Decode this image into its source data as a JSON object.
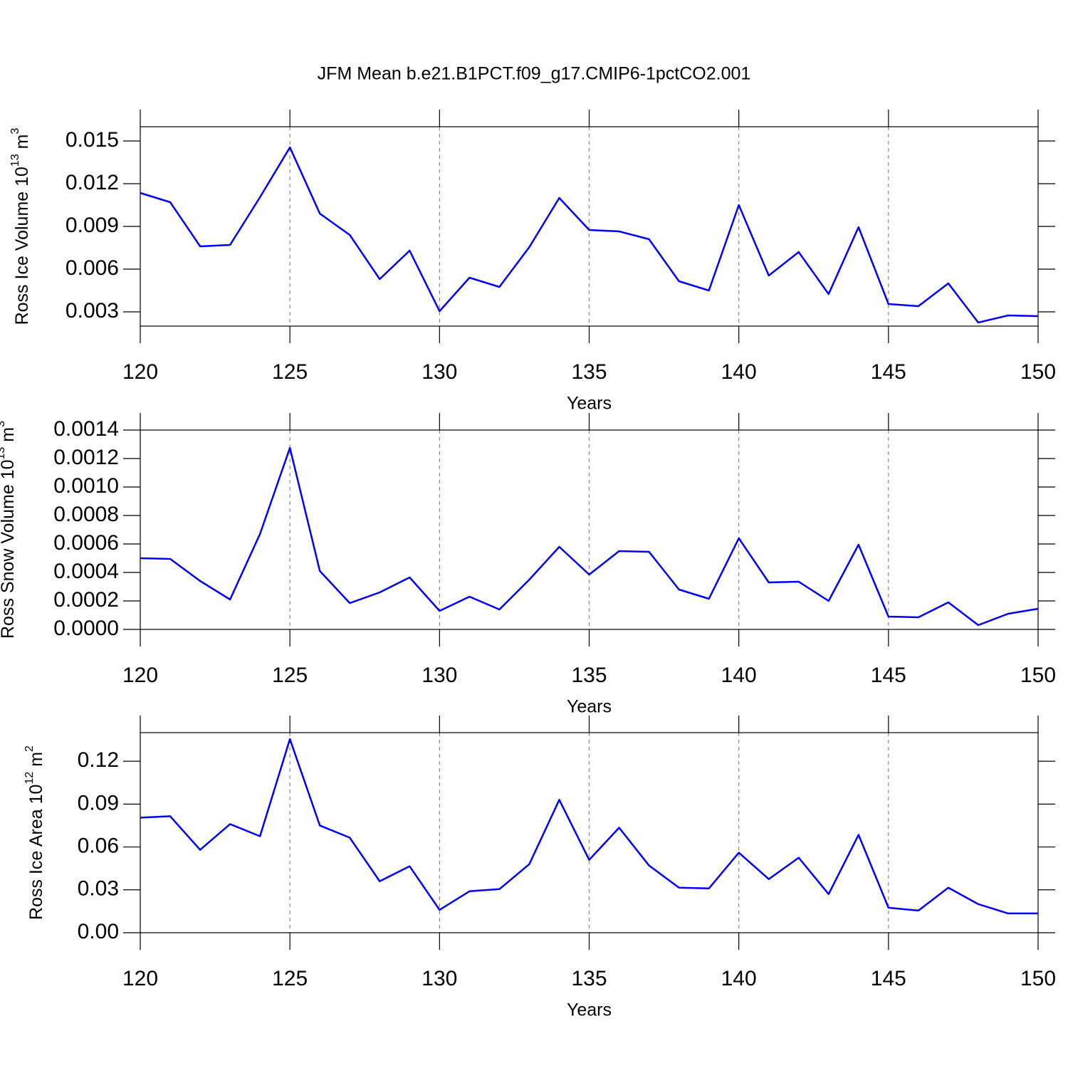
{
  "chart_data": [
    {
      "type": "line",
      "title": "JFM Mean b.e21.B1PCT.f09_g17.CMIP6-1pctCO2.001",
      "ylabel": {
        "base": "Ross Ice Volume 10",
        "power": "13",
        "unit": " m",
        "unit_power": "3"
      },
      "xlabel": "Years",
      "color": "#0000ff",
      "grid": true,
      "x": [
        120,
        121,
        122,
        123,
        124,
        125,
        126,
        127,
        128,
        129,
        130,
        131,
        132,
        133,
        134,
        135,
        136,
        137,
        138,
        139,
        140,
        141,
        142,
        143,
        144,
        145,
        146,
        147,
        148,
        149,
        150
      ],
      "values": [
        0.01135,
        0.0107,
        0.0076,
        0.0077,
        0.01105,
        0.01455,
        0.0099,
        0.0084,
        0.0053,
        0.0073,
        0.00305,
        0.0054,
        0.00475,
        0.00755,
        0.011,
        0.00875,
        0.00865,
        0.0081,
        0.00515,
        0.0045,
        0.0105,
        0.00555,
        0.0072,
        0.00425,
        0.00895,
        0.00355,
        0.0034,
        0.005,
        0.00225,
        0.00275,
        0.0027
      ],
      "xlim": [
        120,
        150
      ],
      "xticks": [
        120,
        125,
        130,
        135,
        140,
        145,
        150
      ],
      "ylim": [
        0.002,
        0.016
      ],
      "yticks": [
        0.003,
        0.006,
        0.009,
        0.012,
        0.015
      ]
    },
    {
      "type": "line",
      "ylabel": {
        "base": "Ross Snow Volume 10",
        "power": "13",
        "unit": " m",
        "unit_power": "3"
      },
      "xlabel": "Years",
      "color": "#0000ff",
      "grid": true,
      "x": [
        120,
        121,
        122,
        123,
        124,
        125,
        126,
        127,
        128,
        129,
        130,
        131,
        132,
        133,
        134,
        135,
        136,
        137,
        138,
        139,
        140,
        141,
        142,
        143,
        144,
        145,
        146,
        147,
        148,
        149,
        150
      ],
      "values": [
        0.0005,
        0.000495,
        0.00034,
        0.00021,
        0.00067,
        0.001275,
        0.00041,
        0.000185,
        0.00026,
        0.000365,
        0.00013,
        0.00023,
        0.00014,
        0.00035,
        0.00058,
        0.000385,
        0.00055,
        0.000545,
        0.00028,
        0.000215,
        0.00064,
        0.00033,
        0.000335,
        0.0002,
        0.000595,
        9e-05,
        8.5e-05,
        0.00019,
        3e-05,
        0.00011,
        0.000145
      ],
      "xlim": [
        120,
        150
      ],
      "xticks": [
        120,
        125,
        130,
        135,
        140,
        145,
        150
      ],
      "ylim": [
        0,
        0.0014
      ],
      "yticks": [
        {
          "value": 0,
          "label": "0.0000"
        },
        0.0002,
        0.0004,
        0.0006,
        0.0008,
        {
          "value": 0.001,
          "label": "0.0010"
        },
        0.0012,
        0.0014
      ]
    },
    {
      "type": "line",
      "ylabel": {
        "base": "Ross Ice Area 10",
        "power": "12",
        "unit": " m",
        "unit_power": "2"
      },
      "xlabel": "Years",
      "color": "#0000ff",
      "grid": true,
      "x": [
        120,
        121,
        122,
        123,
        124,
        125,
        126,
        127,
        128,
        129,
        130,
        131,
        132,
        133,
        134,
        135,
        136,
        137,
        138,
        139,
        140,
        141,
        142,
        143,
        144,
        145,
        146,
        147,
        148,
        149,
        150
      ],
      "values": [
        0.0805,
        0.0815,
        0.058,
        0.076,
        0.0675,
        0.1355,
        0.075,
        0.0665,
        0.036,
        0.0465,
        0.016,
        0.029,
        0.0305,
        0.048,
        0.093,
        0.051,
        0.0735,
        0.047,
        0.0315,
        0.031,
        0.056,
        0.0375,
        0.0525,
        0.027,
        0.0685,
        0.0175,
        0.0155,
        0.0315,
        0.02,
        0.0135,
        0.0135
      ],
      "xlim": [
        120,
        150
      ],
      "xticks": [
        120,
        125,
        130,
        135,
        140,
        145,
        150
      ],
      "ylim": [
        0,
        0.14
      ],
      "yticks": [
        {
          "value": 0,
          "label": "0.00"
        },
        0.03,
        0.06,
        0.09,
        0.12
      ]
    }
  ]
}
